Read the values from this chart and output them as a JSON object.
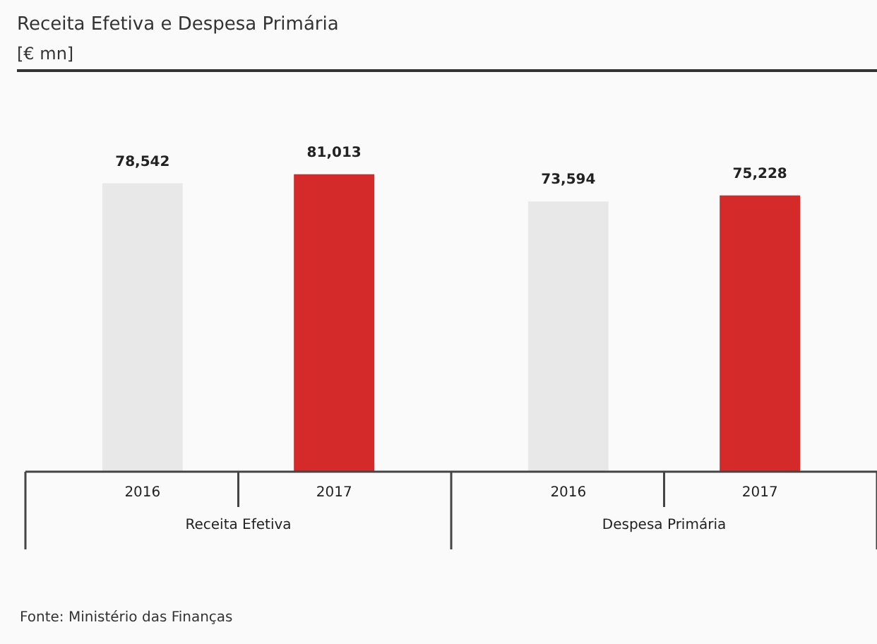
{
  "chart_data": {
    "type": "bar",
    "title": "Receita Efetiva e Despesa Primária",
    "subtitle": "[€ mn]",
    "categories": [
      "Receita Efetiva",
      "Despesa Primária"
    ],
    "series": [
      {
        "name": "2016",
        "color": "#e8e8e8",
        "values": [
          78542,
          73594
        ],
        "value_labels": [
          "78,542",
          "73,594"
        ]
      },
      {
        "name": "2017",
        "color": "#d42a2a",
        "values": [
          81013,
          75228
        ],
        "value_labels": [
          "81,013",
          "75,228"
        ]
      }
    ],
    "legend": false,
    "annotations": [
      "Fonte: Ministério das Finanças"
    ]
  }
}
